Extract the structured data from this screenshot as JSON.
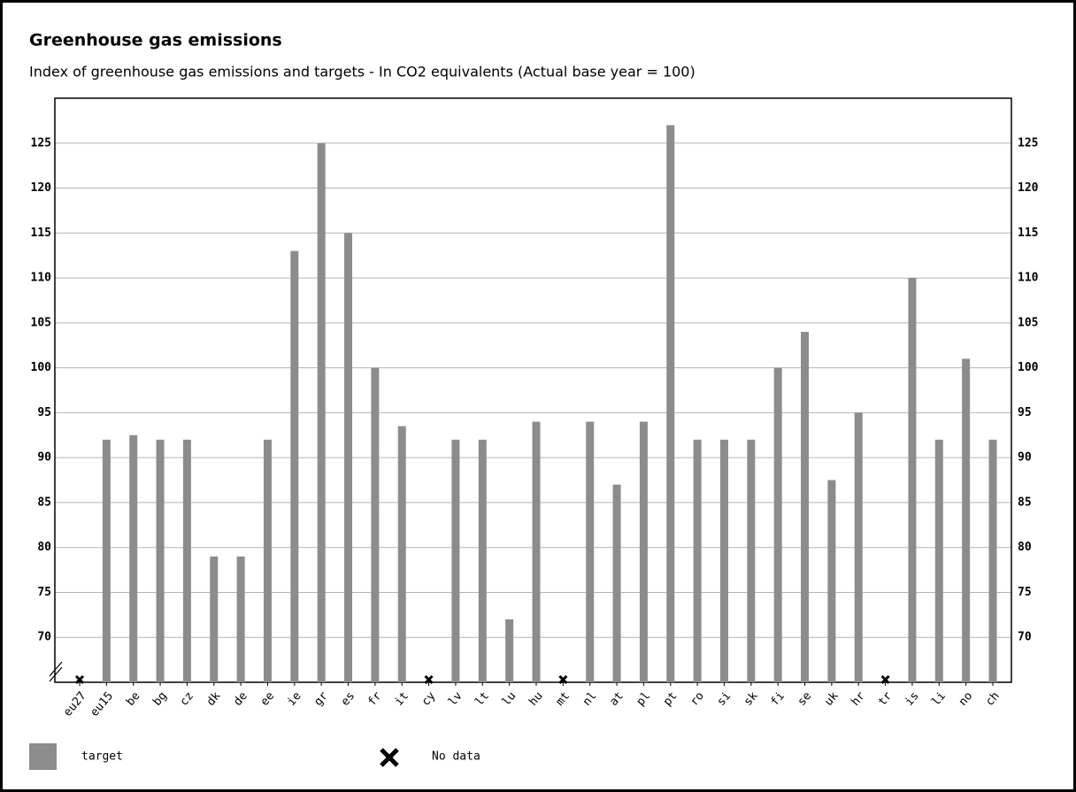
{
  "chart_data": {
    "type": "bar",
    "title": "Greenhouse gas emissions",
    "subtitle": "Index of greenhouse gas emissions and targets - In CO2 equivalents (Actual base year = 100)",
    "categories": [
      "eu27",
      "eu15",
      "be",
      "bg",
      "cz",
      "dk",
      "de",
      "ee",
      "ie",
      "gr",
      "es",
      "fr",
      "it",
      "cy",
      "lv",
      "lt",
      "lu",
      "hu",
      "mt",
      "nl",
      "at",
      "pl",
      "pt",
      "ro",
      "si",
      "sk",
      "fi",
      "se",
      "uk",
      "hr",
      "tr",
      "is",
      "li",
      "no",
      "ch"
    ],
    "series": [
      {
        "name": "target",
        "color": "#8c8c8c",
        "values": [
          null,
          92,
          92.5,
          92,
          92,
          79,
          79,
          92,
          113,
          125,
          115,
          100,
          93.5,
          null,
          92,
          92,
          72,
          94,
          null,
          94,
          87,
          94,
          127,
          92,
          92,
          92,
          100,
          104,
          87.5,
          95,
          null,
          110,
          92,
          101,
          92
        ]
      }
    ],
    "no_data_label": "No data",
    "ylim": [
      65,
      130
    ],
    "yticks": [
      70,
      75,
      80,
      85,
      90,
      95,
      100,
      105,
      110,
      115,
      120,
      125
    ],
    "grid": true
  }
}
